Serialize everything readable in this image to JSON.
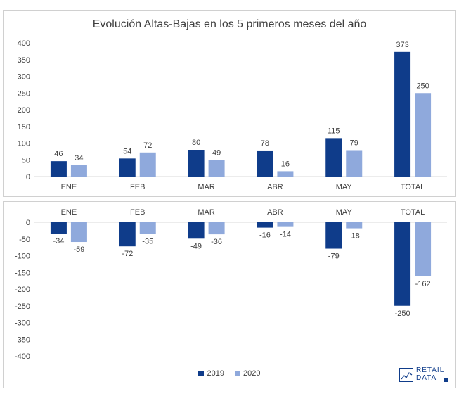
{
  "title": "Evolución Altas-Bajas en los 5 primeros meses del año",
  "colors": {
    "2019": "#0f3c8a",
    "2020": "#8fa9dc"
  },
  "legend": [
    {
      "label": "2019"
    },
    {
      "label": "2020"
    }
  ],
  "logo": {
    "line1": "RETAIL",
    "line2": "DATA"
  },
  "chart_data": [
    {
      "type": "bar",
      "title": "Evolución Altas-Bajas en los 5 primeros meses del año",
      "categories": [
        "ENE",
        "FEB",
        "MAR",
        "ABR",
        "MAY",
        "TOTAL"
      ],
      "series": [
        {
          "name": "2019",
          "values": [
            46,
            54,
            80,
            78,
            115,
            373
          ]
        },
        {
          "name": "2020",
          "values": [
            34,
            72,
            49,
            16,
            79,
            250
          ]
        }
      ],
      "ylim": [
        0,
        400
      ],
      "yticks": [
        0,
        50,
        100,
        150,
        200,
        250,
        300,
        350,
        400
      ],
      "grid": false
    },
    {
      "type": "bar",
      "categories": [
        "ENE",
        "FEB",
        "MAR",
        "ABR",
        "MAY",
        "TOTAL"
      ],
      "series": [
        {
          "name": "2019",
          "values": [
            -34,
            -72,
            -49,
            -16,
            -79,
            -250
          ]
        },
        {
          "name": "2020",
          "values": [
            -59,
            -35,
            -36,
            -14,
            -18,
            -162
          ]
        }
      ],
      "ylim": [
        -400,
        0
      ],
      "yticks": [
        0,
        -50,
        -100,
        -150,
        -200,
        -250,
        -300,
        -350,
        -400
      ],
      "grid": false,
      "legend": "bottom"
    }
  ]
}
